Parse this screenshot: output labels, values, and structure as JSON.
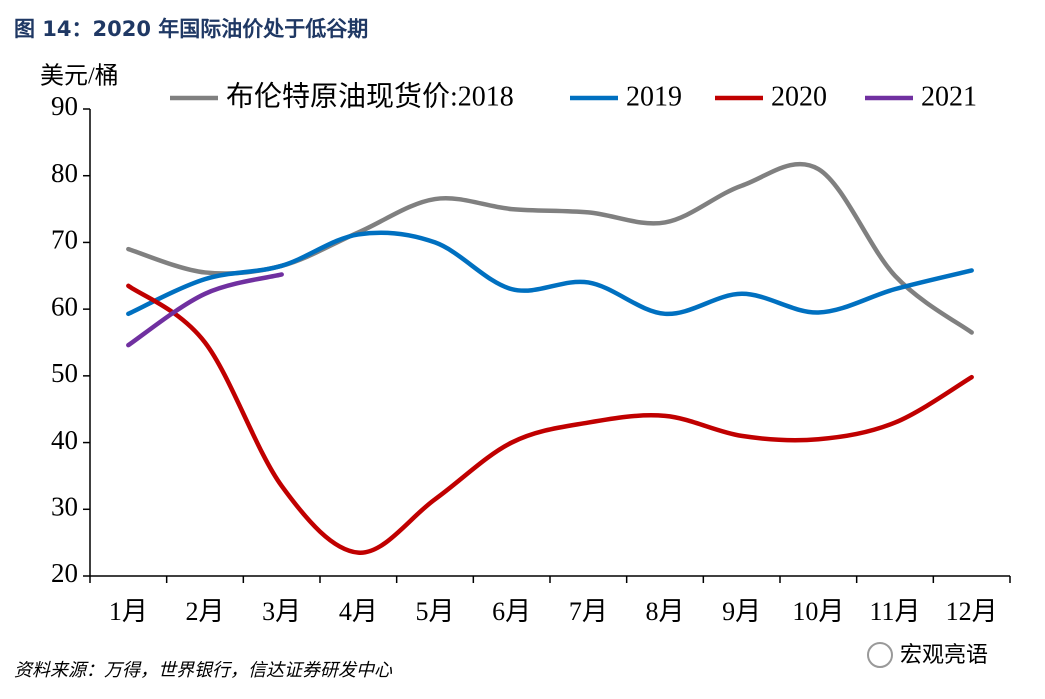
{
  "chart_data": {
    "type": "line",
    "title": "图 14：2020 年国际油价处于低谷期",
    "y_axis_label": "美元/桶",
    "source": "资料来源：万得，世界银行，信达证券研发中心",
    "watermark": "宏观亮语",
    "categories": [
      "1月",
      "2月",
      "3月",
      "4月",
      "5月",
      "6月",
      "7月",
      "8月",
      "9月",
      "10月",
      "11月",
      "12月"
    ],
    "series": [
      {
        "name": "布伦特原油现货价:2018",
        "color": "#808080",
        "values": [
          69,
          65.5,
          66.5,
          71.5,
          76.5,
          75,
          74.5,
          73,
          78.5,
          81,
          65,
          56.5
        ]
      },
      {
        "name": "2019",
        "color": "#0070c0",
        "values": [
          59.3,
          64.5,
          66.5,
          71.2,
          70,
          63,
          64,
          59.3,
          62.3,
          59.5,
          63,
          65.8
        ]
      },
      {
        "name": "2020",
        "color": "#c00000",
        "values": [
          63.5,
          55,
          33.5,
          23.5,
          31.5,
          40,
          43,
          44,
          41,
          40.5,
          43,
          49.8
        ]
      },
      {
        "name": "2021",
        "color": "#7030a0",
        "values": [
          54.6,
          62.3,
          65.2,
          null,
          null,
          null,
          null,
          null,
          null,
          null,
          null,
          null
        ]
      }
    ],
    "ylim": [
      20,
      90
    ],
    "yticks": [
      20,
      30,
      40,
      50,
      60,
      70,
      80,
      90
    ],
    "grid": false
  }
}
